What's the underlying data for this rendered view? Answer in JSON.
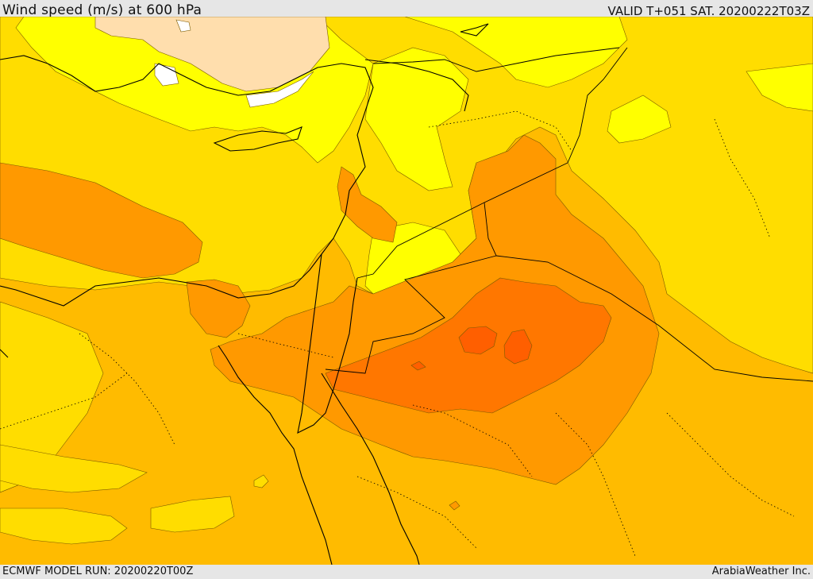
{
  "header": {
    "title": "Wind speed (m/s) at 600 hPa",
    "valid_time": "VALID T+051 SAT. 20200222T03Z"
  },
  "footer": {
    "model_run": "ECMWF MODEL RUN: 20200220T00Z",
    "credit": "ArabiaWeather Inc."
  },
  "colors": {
    "band_white": "#ffffff",
    "band_peach": "#ffdead",
    "band_yellow": "#ffff00",
    "band_gold": "#ffdd00",
    "band_amber": "#ffbb00",
    "band_orange": "#ff9900",
    "band_dark_orange": "#ff7700",
    "band_red_orange": "#ff5f00"
  }
}
